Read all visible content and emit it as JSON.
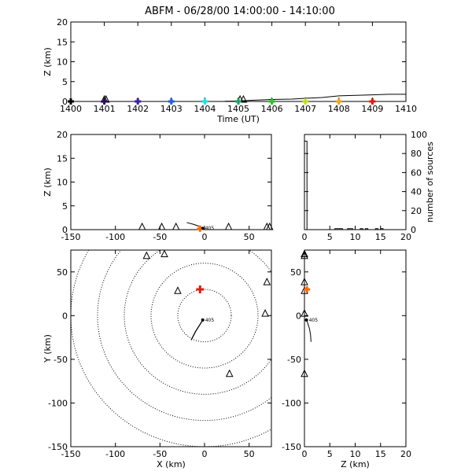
{
  "title": "ABFM - 06/28/00 14:00:00 - 14:10:00",
  "chart_data": [
    {
      "id": "time-height",
      "type": "scatter",
      "xlabel": "Time (UT)",
      "ylabel": "Z (km)",
      "xlim": [
        1400,
        1410
      ],
      "ylim": [
        0,
        20
      ],
      "xticks": [
        "1400",
        "1401",
        "1402",
        "1403",
        "1404",
        "1405",
        "1406",
        "1407",
        "1408",
        "1409",
        "1410"
      ],
      "yticks": [
        "0",
        "5",
        "10",
        "15",
        "20"
      ],
      "minute_markers": [
        {
          "t": 1400.0,
          "color": "#000000"
        },
        {
          "t": 1401.0,
          "color": "#2a0a5e"
        },
        {
          "t": 1402.0,
          "color": "#3a1fa8"
        },
        {
          "t": 1403.0,
          "color": "#1f5fe0"
        },
        {
          "t": 1404.0,
          "color": "#19e3e3"
        },
        {
          "t": 1405.0,
          "color": "#1fa060"
        },
        {
          "t": 1406.0,
          "color": "#22c81e"
        },
        {
          "t": 1407.0,
          "color": "#b8e31c"
        },
        {
          "t": 1408.0,
          "color": "#f0a418"
        },
        {
          "t": 1409.0,
          "color": "#e01c10"
        }
      ],
      "station_times": [
        1401.0,
        1401.05,
        1405.05,
        1405.15
      ],
      "trace": [
        [
          1404.6,
          0.05
        ],
        [
          1405.0,
          0.1
        ],
        [
          1405.4,
          0.3
        ],
        [
          1406.0,
          0.5
        ],
        [
          1406.6,
          0.6
        ],
        [
          1407.0,
          0.8
        ],
        [
          1407.5,
          1.0
        ],
        [
          1408.0,
          1.4
        ],
        [
          1408.8,
          1.6
        ],
        [
          1409.5,
          1.8
        ],
        [
          1410.0,
          1.8
        ]
      ]
    },
    {
      "id": "x-z",
      "type": "scatter",
      "xlabel": "",
      "ylabel": "Z (km)",
      "xlim": [
        -150,
        75
      ],
      "ylim": [
        0,
        20
      ],
      "xticks": [
        "-150",
        "-100",
        "-50",
        "0",
        "50"
      ],
      "yticks": [
        "0",
        "5",
        "10",
        "15",
        "20"
      ],
      "stations_x": [
        -70,
        -48,
        -32,
        27,
        70,
        73
      ],
      "flash_track": [
        [
          -20,
          1.5
        ],
        [
          -12,
          1.1
        ],
        [
          -6,
          0.7
        ],
        [
          -2,
          0.3
        ]
      ],
      "flash_label": "405",
      "flash_point": [
        -2,
        0.3
      ],
      "highlight_station_x": -5
    },
    {
      "id": "histogram",
      "type": "bar",
      "xlabel": "",
      "ylabel": "number of sources",
      "xlim": [
        0,
        20
      ],
      "ylim": [
        0,
        100
      ],
      "xticks": [
        "0",
        "5",
        "10",
        "15",
        "20"
      ],
      "yticks": [
        "0",
        "20",
        "40",
        "60",
        "80",
        "100"
      ],
      "bins": [
        0,
        0.5,
        1,
        1.5,
        2,
        2.5,
        3,
        3.5,
        4,
        4.5,
        5,
        5.5,
        6,
        6.5,
        7,
        7.5,
        8,
        8.5,
        9,
        9.5,
        10,
        10.5,
        11,
        11.5,
        12,
        12.5,
        13,
        13.5,
        14,
        14.5,
        15,
        15.5,
        16,
        16.5,
        17,
        17.5,
        18,
        18.5,
        19,
        19.5,
        20
      ],
      "counts": [
        93,
        0,
        0,
        0,
        0,
        0,
        0,
        0,
        0,
        0,
        0,
        0,
        1,
        1,
        1,
        0,
        0,
        1,
        1,
        0,
        0,
        0,
        1,
        0,
        1,
        0,
        0,
        0,
        1,
        0,
        1,
        0,
        0,
        0,
        0,
        0,
        0,
        0,
        0,
        0
      ]
    },
    {
      "id": "plan-view",
      "type": "scatter",
      "xlabel": "X (km)",
      "ylabel": "Y (km)",
      "xlim": [
        -150,
        75
      ],
      "ylim": [
        -150,
        75
      ],
      "xticks": [
        "-150",
        "-100",
        "-50",
        "0",
        "50"
      ],
      "yticks": [
        "-150",
        "-100",
        "-50",
        "0",
        "50"
      ],
      "range_rings_km": [
        30,
        60,
        90,
        120,
        150
      ],
      "stations": [
        [
          -65,
          68
        ],
        [
          -45,
          70
        ],
        [
          -30,
          28
        ],
        [
          70,
          38
        ],
        [
          68,
          2
        ],
        [
          28,
          -67
        ]
      ],
      "sensor": [
        -5,
        30
      ],
      "flash_track": [
        [
          -15,
          -28
        ],
        [
          -10,
          -18
        ],
        [
          -5,
          -10
        ],
        [
          -2,
          -5
        ]
      ],
      "flash_label": "405",
      "flash_point": [
        -2,
        -5
      ]
    },
    {
      "id": "z-y",
      "type": "scatter",
      "xlabel": "Z (km)",
      "ylabel": "",
      "xlim": [
        0,
        20
      ],
      "ylim": [
        -150,
        75
      ],
      "xticks": [
        "0",
        "5",
        "10",
        "15",
        "20"
      ],
      "yticks": [
        "-150",
        "-100",
        "-50",
        "0",
        "50"
      ],
      "stations_y": [
        70,
        68,
        38,
        28,
        2,
        -67
      ],
      "sensor": [
        0.5,
        30
      ],
      "flash_track": [
        [
          1.3,
          -30
        ],
        [
          1.2,
          -22
        ],
        [
          1.0,
          -15
        ],
        [
          0.6,
          -8
        ],
        [
          0.4,
          -5
        ]
      ],
      "flash_label": "405",
      "flash_point": [
        0.4,
        -5
      ]
    }
  ]
}
